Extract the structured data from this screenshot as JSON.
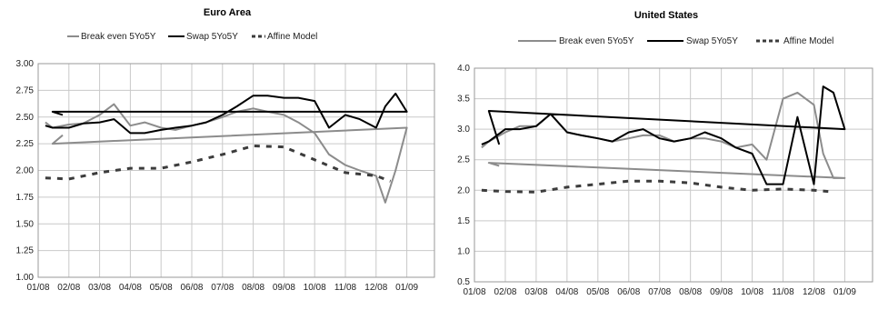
{
  "chart_data": [
    {
      "type": "line",
      "title": "Euro Area",
      "xlabel": "",
      "ylabel": "",
      "ylim": [
        1.0,
        3.0
      ],
      "y_ticks": [
        "3.00",
        "2.75",
        "2.50",
        "2.25",
        "2.00",
        "1.75",
        "1.50",
        "1.25",
        "1.00"
      ],
      "x_ticks": [
        "01/08",
        "02/08",
        "03/08",
        "04/08",
        "05/08",
        "06/08",
        "07/08",
        "08/08",
        "09/08",
        "10/08",
        "11/08",
        "12/08",
        "01/09"
      ],
      "grid": true,
      "legend_position": "top",
      "series": [
        {
          "name": "Break even 5Yo5Y",
          "color": "#8c8c8c",
          "style": "solid",
          "x": [
            "01/08",
            "01/15",
            "02/01",
            "02/15",
            "03/01",
            "03/15",
            "04/01",
            "04/15",
            "05/01",
            "05/15",
            "06/01",
            "06/15",
            "07/01",
            "07/15",
            "08/01",
            "08/15",
            "09/01",
            "09/15",
            "10/01",
            "10/15",
            "11/01",
            "11/15",
            "12/01",
            "12/10",
            "12/20",
            "01/09",
            "01/15",
            "01/25"
          ],
          "values": [
            2.45,
            2.4,
            2.43,
            2.44,
            2.52,
            2.62,
            2.42,
            2.45,
            2.4,
            2.38,
            2.42,
            2.45,
            2.5,
            2.55,
            2.58,
            2.55,
            2.52,
            2.45,
            2.35,
            2.15,
            2.05,
            2.0,
            1.95,
            1.7,
            2.0,
            2.4,
            2.25,
            2.33
          ]
        },
        {
          "name": "Swap 5Yo5Y",
          "color": "#000000",
          "style": "solid",
          "x": [
            "01/08",
            "01/15",
            "02/01",
            "02/15",
            "03/01",
            "03/15",
            "04/01",
            "04/15",
            "05/01",
            "05/15",
            "06/01",
            "06/15",
            "07/01",
            "07/15",
            "08/01",
            "08/15",
            "09/01",
            "09/15",
            "10/01",
            "10/15",
            "11/01",
            "11/15",
            "12/01",
            "12/10",
            "12/20",
            "01/09",
            "01/15",
            "01/25"
          ],
          "values": [
            2.42,
            2.4,
            2.4,
            2.44,
            2.45,
            2.48,
            2.35,
            2.35,
            2.38,
            2.4,
            2.42,
            2.45,
            2.52,
            2.6,
            2.7,
            2.7,
            2.68,
            2.68,
            2.65,
            2.4,
            2.52,
            2.48,
            2.4,
            2.6,
            2.72,
            2.55,
            2.55,
            2.52
          ]
        },
        {
          "name": "Affine Model",
          "color": "#3c3c3c",
          "style": "dashed",
          "x": [
            "01/08",
            "02/01",
            "03/01",
            "04/01",
            "05/01",
            "06/01",
            "07/01",
            "08/01",
            "09/01",
            "10/01",
            "11/01",
            "12/01",
            "12/15"
          ],
          "values": [
            1.93,
            1.92,
            1.98,
            2.02,
            2.02,
            2.08,
            2.15,
            2.23,
            2.22,
            2.1,
            1.98,
            1.95,
            1.9
          ]
        }
      ]
    },
    {
      "type": "line",
      "title": "United States",
      "xlabel": "",
      "ylabel": "",
      "ylim": [
        0.5,
        4.0
      ],
      "y_ticks": [
        "4.0",
        "3.5",
        "3.0",
        "2.5",
        "2.0",
        "1.5",
        "1.0",
        "0.5"
      ],
      "x_ticks": [
        "01/08",
        "02/08",
        "03/08",
        "04/08",
        "05/08",
        "06/08",
        "07/08",
        "08/08",
        "09/08",
        "10/08",
        "11/08",
        "12/08",
        "01/09"
      ],
      "grid": true,
      "legend_position": "top",
      "series": [
        {
          "name": "Break even 5Yo5Y",
          "color": "#8c8c8c",
          "style": "solid",
          "x": [
            "01/08",
            "01/15",
            "02/01",
            "02/15",
            "03/01",
            "03/15",
            "04/01",
            "04/15",
            "05/01",
            "05/15",
            "06/01",
            "06/15",
            "07/01",
            "07/15",
            "08/01",
            "08/15",
            "09/01",
            "09/15",
            "10/01",
            "10/15",
            "11/01",
            "11/15",
            "12/01",
            "12/10",
            "12/20",
            "01/09",
            "01/15",
            "01/25"
          ],
          "values": [
            2.7,
            2.8,
            2.95,
            3.05,
            3.05,
            3.25,
            2.95,
            2.9,
            2.85,
            2.8,
            2.85,
            2.9,
            2.9,
            2.8,
            2.85,
            2.85,
            2.8,
            2.7,
            2.75,
            2.5,
            3.5,
            3.6,
            3.4,
            2.6,
            2.2,
            2.2,
            2.45,
            2.4
          ]
        },
        {
          "name": "Swap 5Yo5Y",
          "color": "#000000",
          "style": "solid",
          "x": [
            "01/08",
            "01/15",
            "02/01",
            "02/15",
            "03/01",
            "03/15",
            "04/01",
            "04/15",
            "05/01",
            "05/15",
            "06/01",
            "06/15",
            "07/01",
            "07/15",
            "08/01",
            "08/15",
            "09/01",
            "09/15",
            "10/01",
            "10/15",
            "11/01",
            "11/15",
            "12/01",
            "12/10",
            "12/20",
            "01/09",
            "01/15",
            "01/25"
          ],
          "values": [
            2.75,
            2.8,
            3.0,
            3.0,
            3.05,
            3.25,
            2.95,
            2.9,
            2.85,
            2.8,
            2.95,
            3.0,
            2.85,
            2.8,
            2.85,
            2.95,
            2.85,
            2.7,
            2.6,
            2.1,
            2.1,
            3.2,
            2.1,
            3.7,
            3.6,
            3.0,
            3.3,
            2.75
          ]
        },
        {
          "name": "Affine Model",
          "color": "#3c3c3c",
          "style": "dashed",
          "x": [
            "01/08",
            "02/01",
            "03/01",
            "04/01",
            "05/01",
            "06/01",
            "07/01",
            "08/01",
            "09/01",
            "10/01",
            "11/01",
            "12/01",
            "12/15"
          ],
          "values": [
            2.0,
            1.98,
            1.97,
            2.05,
            2.1,
            2.15,
            2.15,
            2.12,
            2.05,
            2.0,
            2.02,
            2.0,
            1.98
          ]
        }
      ]
    }
  ]
}
